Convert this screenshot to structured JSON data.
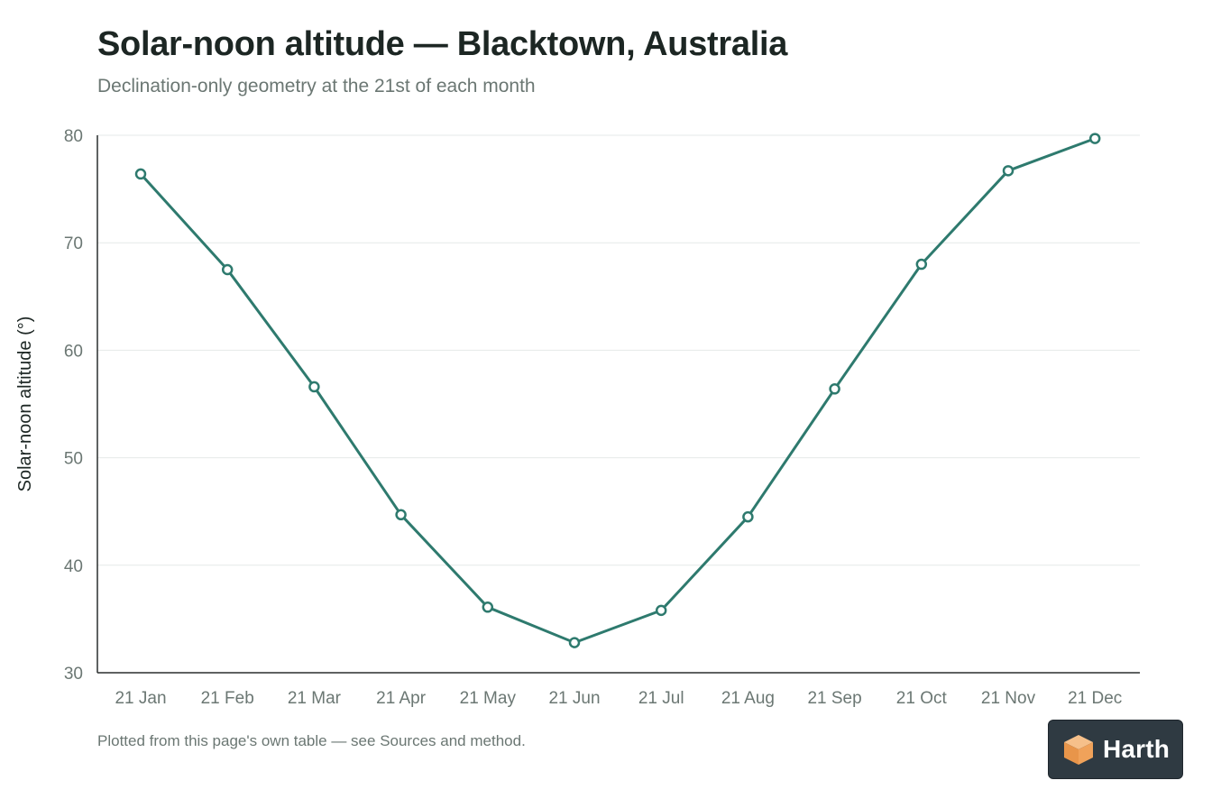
{
  "header": {
    "title": "Solar-noon altitude — Blacktown, Australia",
    "subtitle": "Declination-only geometry at the 21st of each month"
  },
  "footnote": "Plotted from this page's own table — see Sources and method.",
  "brand": {
    "name": "Harth",
    "logo_icon": "cube-logo-icon",
    "logo_color": "#f0a25a"
  },
  "colors": {
    "line": "#2e7a6e",
    "grid": "#e6e9e8",
    "axis": "#2a2f2e",
    "tick_text": "#6b7773"
  },
  "chart_data": {
    "type": "line",
    "title": "Solar-noon altitude — Blacktown, Australia",
    "subtitle": "Declination-only geometry at the 21st of each month",
    "xlabel": "",
    "ylabel": "Solar-noon altitude (°)",
    "categories": [
      "21 Jan",
      "21 Feb",
      "21 Mar",
      "21 Apr",
      "21 May",
      "21 Jun",
      "21 Jul",
      "21 Aug",
      "21 Sep",
      "21 Oct",
      "21 Nov",
      "21 Dec"
    ],
    "series": [
      {
        "values": [
          76.4,
          67.5,
          56.6,
          44.7,
          36.1,
          32.8,
          35.8,
          44.5,
          56.4,
          68.0,
          76.7,
          79.7
        ]
      }
    ],
    "ylim": [
      30,
      80
    ],
    "yticks": [
      30,
      40,
      50,
      60,
      70,
      80
    ],
    "grid": true,
    "legend": "none",
    "marker": "open-circle"
  }
}
